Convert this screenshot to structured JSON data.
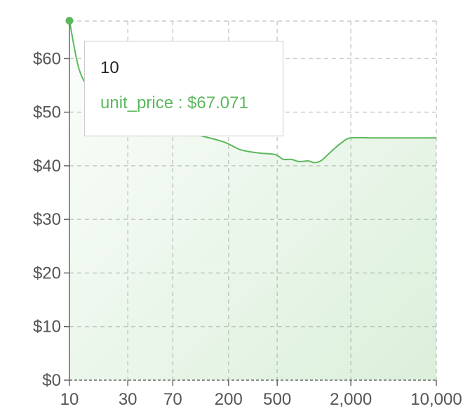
{
  "chart_data": {
    "type": "area",
    "x_scale": "log",
    "xlim": [
      10,
      10000
    ],
    "ylim": [
      0,
      67
    ],
    "grid": true,
    "colors": {
      "line": "#5cb85c",
      "fill": "#5cb85c"
    },
    "x_ticks": [
      {
        "value": 10,
        "label": "10"
      },
      {
        "value": 30,
        "label": "30"
      },
      {
        "value": 70,
        "label": "70"
      },
      {
        "value": 200,
        "label": "200"
      },
      {
        "value": 500,
        "label": "500"
      },
      {
        "value": 2000,
        "label": "2,000"
      },
      {
        "value": 10000,
        "label": "10,000"
      }
    ],
    "y_ticks": [
      {
        "value": 0,
        "label": "$0"
      },
      {
        "value": 10,
        "label": "$10"
      },
      {
        "value": 20,
        "label": "$20"
      },
      {
        "value": 30,
        "label": "$30"
      },
      {
        "value": 40,
        "label": "$40"
      },
      {
        "value": 50,
        "label": "$50"
      },
      {
        "value": 60,
        "label": "$60"
      }
    ],
    "series": [
      {
        "name": "unit_price",
        "points": [
          [
            10,
            67.071
          ],
          [
            12,
            58
          ],
          [
            15,
            54
          ],
          [
            20,
            51
          ],
          [
            30,
            49
          ],
          [
            50,
            47.5
          ],
          [
            100,
            46
          ],
          [
            180,
            44.5
          ],
          [
            250,
            43
          ],
          [
            350,
            42.4
          ],
          [
            480,
            42.1
          ],
          [
            560,
            41.2
          ],
          [
            650,
            41.2
          ],
          [
            750,
            40.8
          ],
          [
            900,
            40.9
          ],
          [
            1000,
            40.6
          ],
          [
            1150,
            41
          ],
          [
            1400,
            42.8
          ],
          [
            1700,
            44.4
          ],
          [
            2000,
            45.2
          ],
          [
            3000,
            45.2
          ],
          [
            5000,
            45.2
          ],
          [
            10000,
            45.2
          ]
        ]
      }
    ],
    "tooltip": {
      "label": "10",
      "item": "unit_price : $67.071"
    }
  }
}
